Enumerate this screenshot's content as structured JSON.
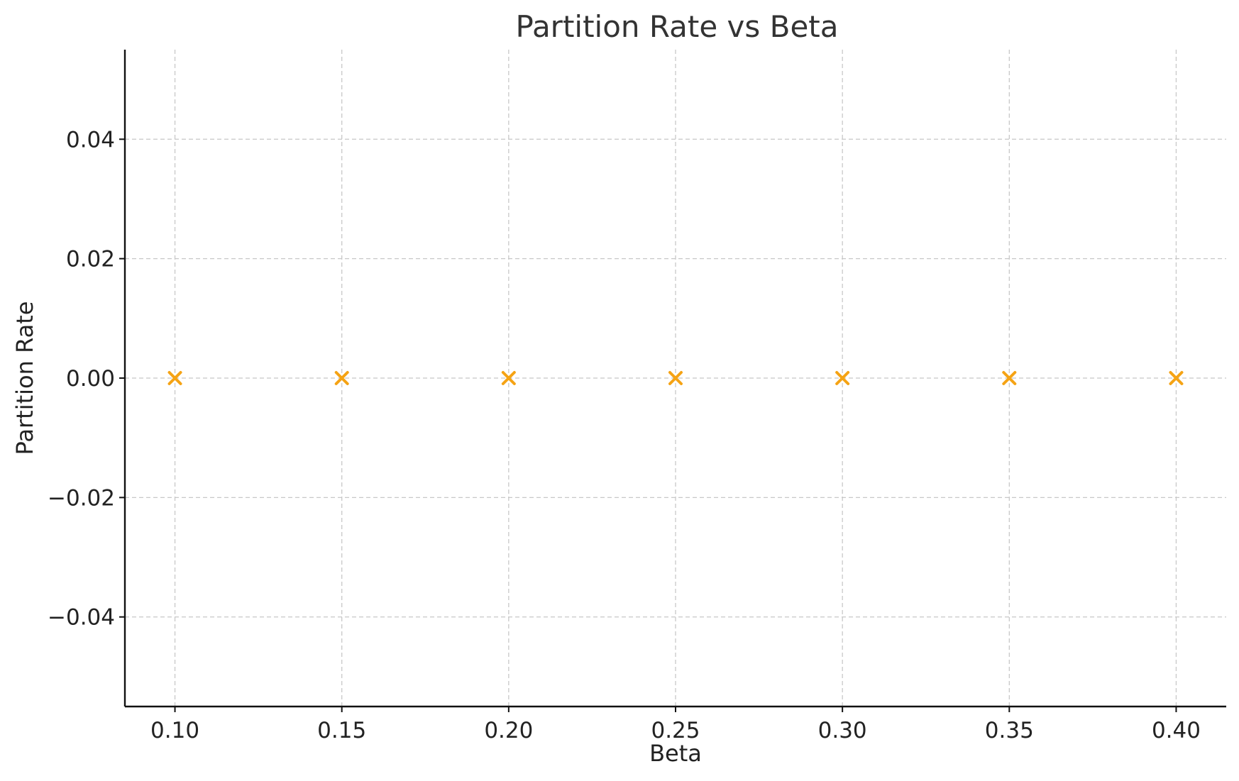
{
  "chart_data": {
    "type": "scatter",
    "title": "Partition Rate vs Beta",
    "xlabel": "Beta",
    "ylabel": "Partition Rate",
    "x": [
      0.1,
      0.15,
      0.2,
      0.25,
      0.3,
      0.35,
      0.4
    ],
    "y": [
      0,
      0,
      0,
      0,
      0,
      0,
      0
    ],
    "xlim": [
      0.085,
      0.415
    ],
    "ylim": [
      -0.055,
      0.055
    ],
    "xticks": [
      0.1,
      0.15,
      0.2,
      0.25,
      0.3,
      0.35,
      0.4
    ],
    "xtick_labels": [
      "0.10",
      "0.15",
      "0.20",
      "0.25",
      "0.30",
      "0.35",
      "0.40"
    ],
    "yticks": [
      0.04,
      0.02,
      0.0,
      -0.02,
      -0.04
    ],
    "ytick_labels": [
      "0.04",
      "0.02",
      "0.00",
      "−0.02",
      "−0.04"
    ],
    "marker": "x",
    "marker_color": "#f5a314",
    "grid": true,
    "grid_style": "dashed",
    "legend": "none"
  }
}
